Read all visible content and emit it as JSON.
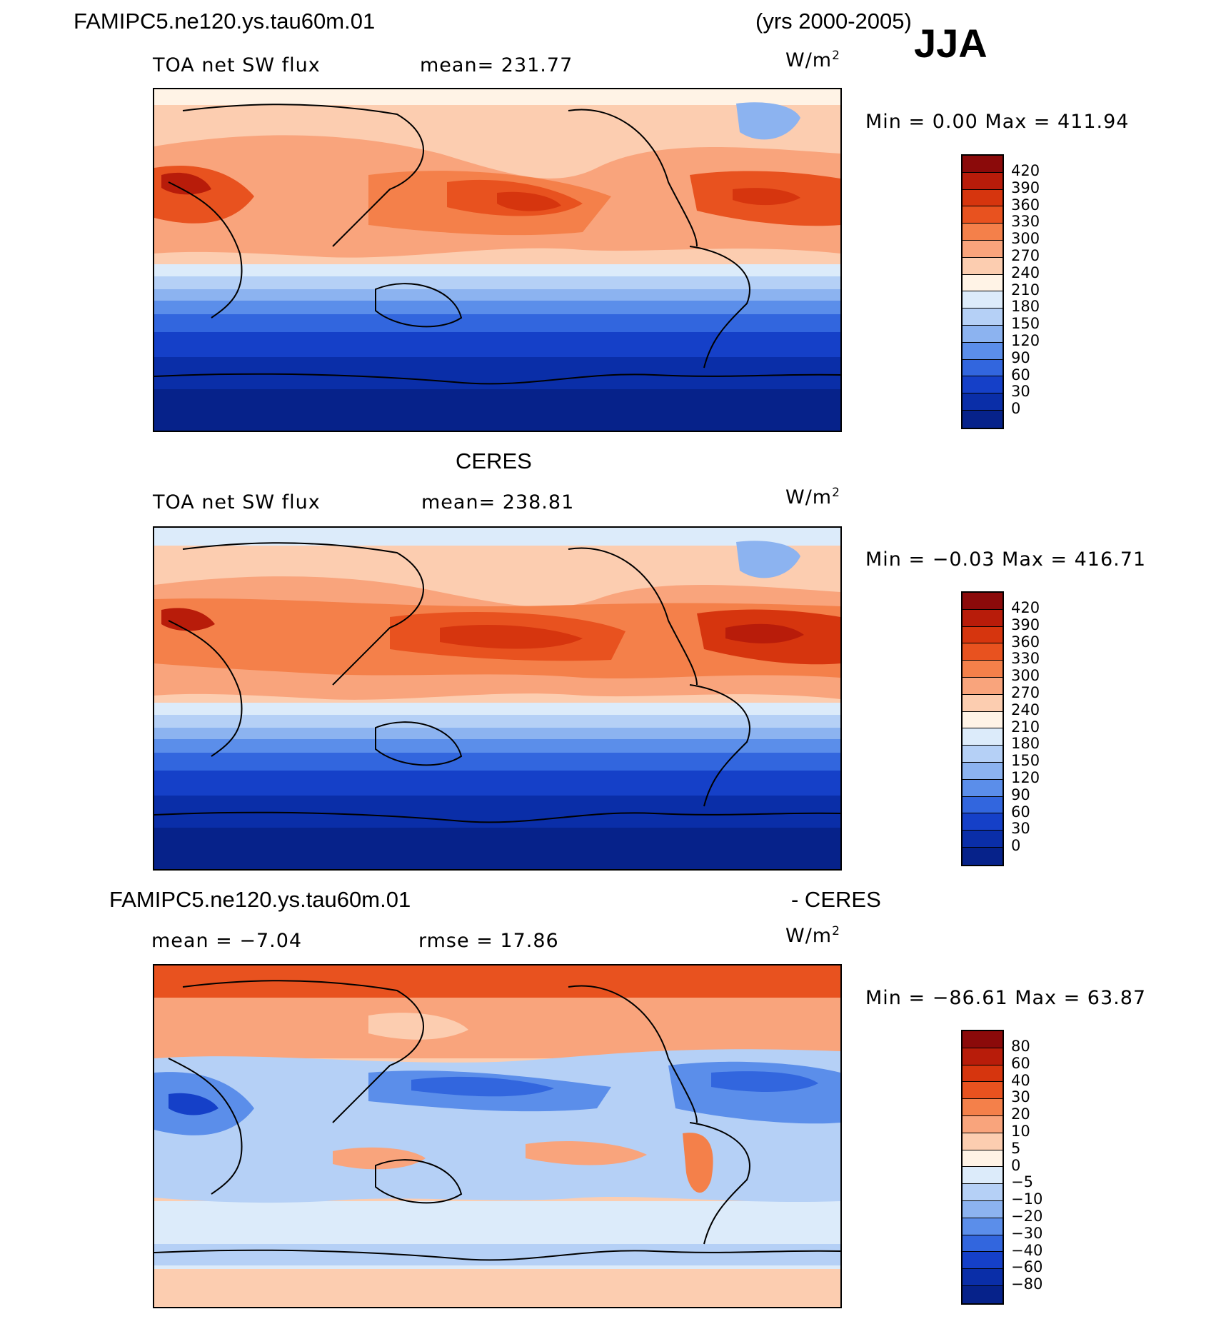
{
  "header": {
    "case_name": "FAMIPC5.ne120.ys.tau60m.01",
    "years": "(yrs 2000-2005)",
    "season": "JJA"
  },
  "panel_model": {
    "variable": "TOA net SW flux",
    "mean": "mean= 231.77",
    "units": "W/m",
    "units_exp": "2",
    "minmax": "Min =    0.00 Max = 411.94",
    "colorbar_labels": [
      "420",
      "390",
      "360",
      "330",
      "300",
      "270",
      "240",
      "210",
      "180",
      "150",
      "120",
      "90",
      "60",
      "30",
      "0"
    ]
  },
  "panel_obs": {
    "title": "CERES",
    "variable": "TOA net SW flux",
    "mean": "mean= 238.81",
    "units": "W/m",
    "units_exp": "2",
    "minmax": "Min =  −0.03 Max = 416.71",
    "colorbar_labels": [
      "420",
      "390",
      "360",
      "330",
      "300",
      "270",
      "240",
      "210",
      "180",
      "150",
      "120",
      "90",
      "60",
      "30",
      "0"
    ]
  },
  "panel_diff": {
    "title_left": "FAMIPC5.ne120.ys.tau60m.01",
    "title_right": "- CERES",
    "mean": "mean =  −7.04",
    "rmse": "rmse =   17.86",
    "units": "W/m",
    "units_exp": "2",
    "minmax": "Min = −86.61 Max =  63.87",
    "colorbar_labels": [
      "80",
      "60",
      "40",
      "30",
      "20",
      "10",
      "5",
      "0",
      "−5",
      "−10",
      "−20",
      "−30",
      "−40",
      "−60",
      "−80"
    ]
  },
  "colors": {
    "flux_scale": [
      "#8b0a0a",
      "#b81c0a",
      "#d6350e",
      "#e8521f",
      "#f4804a",
      "#f9a47c",
      "#fccdb0",
      "#fff3e6",
      "#dcebfa",
      "#b5d0f6",
      "#8cb3f0",
      "#5b8eea",
      "#3266de",
      "#1540c8",
      "#0a2ea8",
      "#06228a"
    ],
    "diff_scale": [
      "#8b0a0a",
      "#b81c0a",
      "#d6350e",
      "#e8521f",
      "#f4804a",
      "#f9a47c",
      "#fccdb0",
      "#fff3e6",
      "#dcebfa",
      "#b5d0f6",
      "#8cb3f0",
      "#5b8eea",
      "#3266de",
      "#1540c8",
      "#0a2ea8",
      "#06228a"
    ]
  }
}
